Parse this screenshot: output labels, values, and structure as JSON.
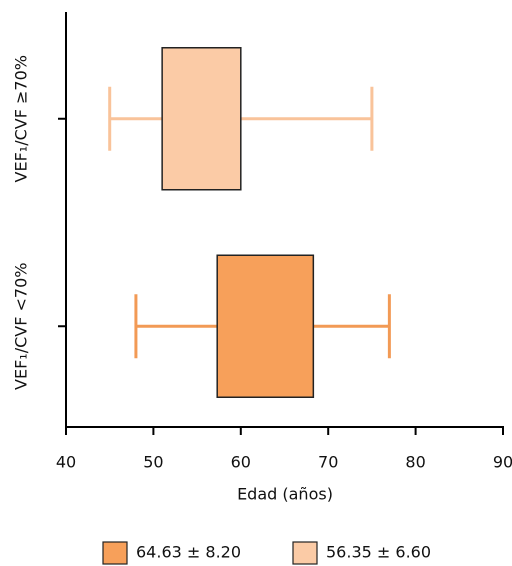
{
  "chart_data": {
    "type": "box",
    "categories": [
      "VEF₁/CVF ≥70%",
      "VEF₁/CVF <70%"
    ],
    "series": [
      {
        "name": "56.35 ± 6.60",
        "color": "#fbcba6",
        "whisker_color": "#f9c39a",
        "whisker_low": 45,
        "box_low": 51,
        "box_high": 60,
        "whisker_high": 75
      },
      {
        "name": "64.63 ± 8.20",
        "color": "#f7a05a",
        "whisker_color": "#f29a55",
        "whisker_low": 48,
        "box_low": 57.3,
        "box_high": 68.3,
        "whisker_high": 77
      }
    ],
    "xlim": [
      40,
      90
    ],
    "xticks": [
      40,
      50,
      60,
      70,
      80,
      90
    ],
    "x_label": "Edad (años)"
  }
}
